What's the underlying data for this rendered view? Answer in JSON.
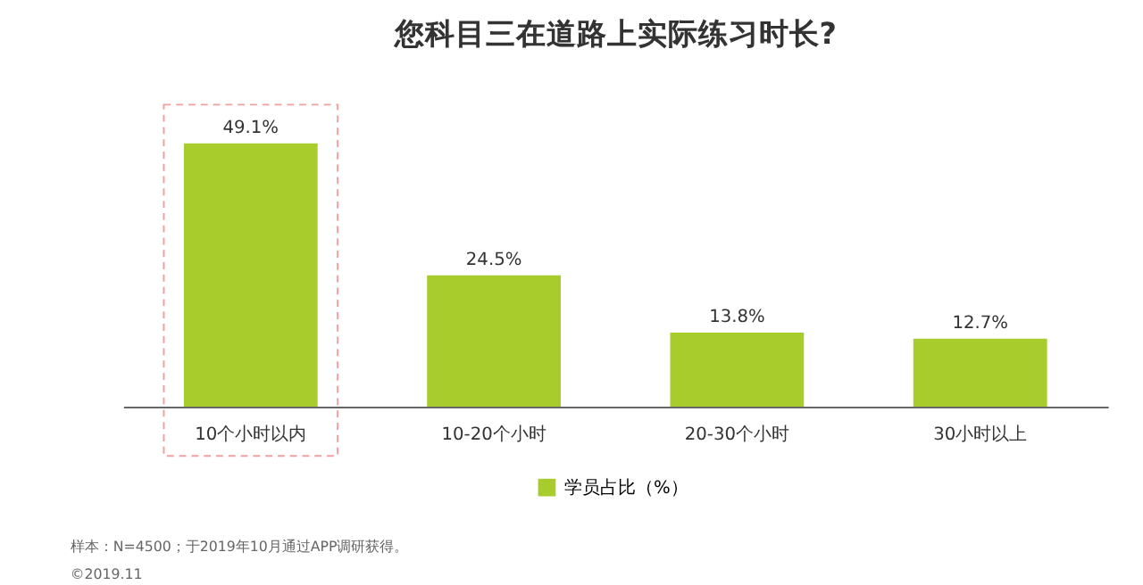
{
  "chart_data": {
    "type": "bar",
    "title": "您科目三在道路上实际练习时长?",
    "categories": [
      "10个小时以内",
      "10-20个小时",
      "20-30个小时",
      "30小时以上"
    ],
    "series": [
      {
        "name": "学员占比（%）",
        "color": "#a8cc2c",
        "values": [
          49.1,
          24.5,
          13.8,
          12.7
        ],
        "value_labels": [
          "49.1%",
          "24.5%",
          "13.8%",
          "12.7%"
        ]
      }
    ],
    "annotations": [
      "样本：N=4500；于2019年10月通过APP调研获得。",
      "©2019.11"
    ],
    "legend": "bottom",
    "grid": false
  }
}
